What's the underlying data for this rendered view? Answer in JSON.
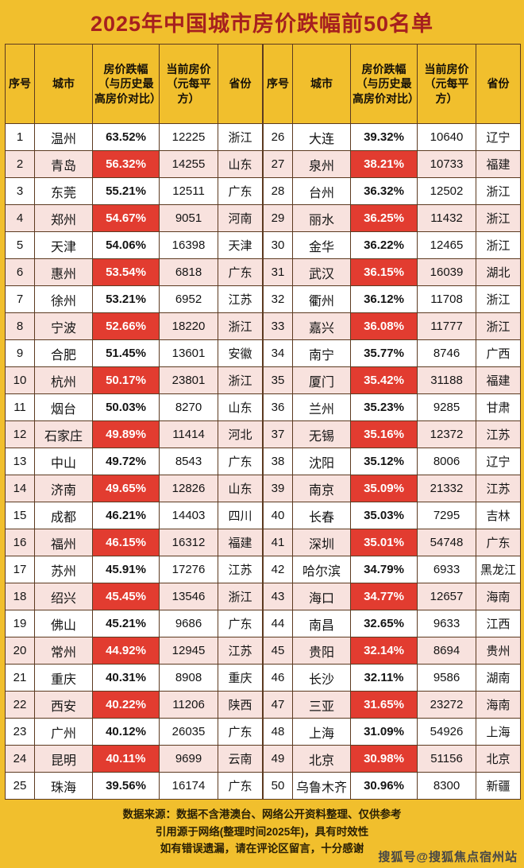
{
  "title": "2025年中国城市房价跌幅前50名单",
  "chart_data": {
    "type": "table",
    "title": "2025年中国城市房价跌幅前50名单",
    "columns": [
      "序号",
      "城市",
      "房价跌幅（与历史最高房价对比）",
      "当前房价（元每平方）",
      "省份"
    ],
    "left_rows": [
      {
        "rank": "1",
        "city": "温州",
        "drop": "63.52%",
        "price": "12225",
        "province": "浙江",
        "hl": false
      },
      {
        "rank": "2",
        "city": "青岛",
        "drop": "56.32%",
        "price": "14255",
        "province": "山东",
        "hl": true
      },
      {
        "rank": "3",
        "city": "东莞",
        "drop": "55.21%",
        "price": "12511",
        "province": "广东",
        "hl": false
      },
      {
        "rank": "4",
        "city": "郑州",
        "drop": "54.67%",
        "price": "9051",
        "province": "河南",
        "hl": true
      },
      {
        "rank": "5",
        "city": "天津",
        "drop": "54.06%",
        "price": "16398",
        "province": "天津",
        "hl": false
      },
      {
        "rank": "6",
        "city": "惠州",
        "drop": "53.54%",
        "price": "6818",
        "province": "广东",
        "hl": true
      },
      {
        "rank": "7",
        "city": "徐州",
        "drop": "53.21%",
        "price": "6952",
        "province": "江苏",
        "hl": false
      },
      {
        "rank": "8",
        "city": "宁波",
        "drop": "52.66%",
        "price": "18220",
        "province": "浙江",
        "hl": true
      },
      {
        "rank": "9",
        "city": "合肥",
        "drop": "51.45%",
        "price": "13601",
        "province": "安徽",
        "hl": false
      },
      {
        "rank": "10",
        "city": "杭州",
        "drop": "50.17%",
        "price": "23801",
        "province": "浙江",
        "hl": true
      },
      {
        "rank": "11",
        "city": "烟台",
        "drop": "50.03%",
        "price": "8270",
        "province": "山东",
        "hl": false
      },
      {
        "rank": "12",
        "city": "石家庄",
        "drop": "49.89%",
        "price": "11414",
        "province": "河北",
        "hl": true
      },
      {
        "rank": "13",
        "city": "中山",
        "drop": "49.72%",
        "price": "8543",
        "province": "广东",
        "hl": false
      },
      {
        "rank": "14",
        "city": "济南",
        "drop": "49.65%",
        "price": "12826",
        "province": "山东",
        "hl": true
      },
      {
        "rank": "15",
        "city": "成都",
        "drop": "46.21%",
        "price": "14403",
        "province": "四川",
        "hl": false
      },
      {
        "rank": "16",
        "city": "福州",
        "drop": "46.15%",
        "price": "16312",
        "province": "福建",
        "hl": true
      },
      {
        "rank": "17",
        "city": "苏州",
        "drop": "45.91%",
        "price": "17276",
        "province": "江苏",
        "hl": false
      },
      {
        "rank": "18",
        "city": "绍兴",
        "drop": "45.45%",
        "price": "13546",
        "province": "浙江",
        "hl": true
      },
      {
        "rank": "19",
        "city": "佛山",
        "drop": "45.21%",
        "price": "9686",
        "province": "广东",
        "hl": false
      },
      {
        "rank": "20",
        "city": "常州",
        "drop": "44.92%",
        "price": "12945",
        "province": "江苏",
        "hl": true
      },
      {
        "rank": "21",
        "city": "重庆",
        "drop": "40.31%",
        "price": "8908",
        "province": "重庆",
        "hl": false
      },
      {
        "rank": "22",
        "city": "西安",
        "drop": "40.22%",
        "price": "11206",
        "province": "陕西",
        "hl": true
      },
      {
        "rank": "23",
        "city": "广州",
        "drop": "40.12%",
        "price": "26035",
        "province": "广东",
        "hl": false
      },
      {
        "rank": "24",
        "city": "昆明",
        "drop": "40.11%",
        "price": "9699",
        "province": "云南",
        "hl": true
      },
      {
        "rank": "25",
        "city": "珠海",
        "drop": "39.56%",
        "price": "16174",
        "province": "广东",
        "hl": false
      }
    ],
    "right_rows": [
      {
        "rank": "26",
        "city": "大连",
        "drop": "39.32%",
        "price": "10640",
        "province": "辽宁",
        "hl": false
      },
      {
        "rank": "27",
        "city": "泉州",
        "drop": "38.21%",
        "price": "10733",
        "province": "福建",
        "hl": true
      },
      {
        "rank": "28",
        "city": "台州",
        "drop": "36.32%",
        "price": "12502",
        "province": "浙江",
        "hl": false
      },
      {
        "rank": "29",
        "city": "丽水",
        "drop": "36.25%",
        "price": "11432",
        "province": "浙江",
        "hl": true
      },
      {
        "rank": "30",
        "city": "金华",
        "drop": "36.22%",
        "price": "12465",
        "province": "浙江",
        "hl": false
      },
      {
        "rank": "31",
        "city": "武汉",
        "drop": "36.15%",
        "price": "16039",
        "province": "湖北",
        "hl": true
      },
      {
        "rank": "32",
        "city": "衢州",
        "drop": "36.12%",
        "price": "11708",
        "province": "浙江",
        "hl": false
      },
      {
        "rank": "33",
        "city": "嘉兴",
        "drop": "36.08%",
        "price": "11777",
        "province": "浙江",
        "hl": true
      },
      {
        "rank": "34",
        "city": "南宁",
        "drop": "35.77%",
        "price": "8746",
        "province": "广西",
        "hl": false
      },
      {
        "rank": "35",
        "city": "厦门",
        "drop": "35.42%",
        "price": "31188",
        "province": "福建",
        "hl": true
      },
      {
        "rank": "36",
        "city": "兰州",
        "drop": "35.23%",
        "price": "9285",
        "province": "甘肃",
        "hl": false
      },
      {
        "rank": "37",
        "city": "无锡",
        "drop": "35.16%",
        "price": "12372",
        "province": "江苏",
        "hl": true
      },
      {
        "rank": "38",
        "city": "沈阳",
        "drop": "35.12%",
        "price": "8006",
        "province": "辽宁",
        "hl": false
      },
      {
        "rank": "39",
        "city": "南京",
        "drop": "35.09%",
        "price": "21332",
        "province": "江苏",
        "hl": true
      },
      {
        "rank": "40",
        "city": "长春",
        "drop": "35.03%",
        "price": "7295",
        "province": "吉林",
        "hl": false
      },
      {
        "rank": "41",
        "city": "深圳",
        "drop": "35.01%",
        "price": "54748",
        "province": "广东",
        "hl": true
      },
      {
        "rank": "42",
        "city": "哈尔滨",
        "drop": "34.79%",
        "price": "6933",
        "province": "黑龙江",
        "hl": false
      },
      {
        "rank": "43",
        "city": "海口",
        "drop": "34.77%",
        "price": "12657",
        "province": "海南",
        "hl": true
      },
      {
        "rank": "44",
        "city": "南昌",
        "drop": "32.65%",
        "price": "9633",
        "province": "江西",
        "hl": false
      },
      {
        "rank": "45",
        "city": "贵阳",
        "drop": "32.14%",
        "price": "8694",
        "province": "贵州",
        "hl": true
      },
      {
        "rank": "46",
        "city": "长沙",
        "drop": "32.11%",
        "price": "9586",
        "province": "湖南",
        "hl": false
      },
      {
        "rank": "47",
        "city": "三亚",
        "drop": "31.65%",
        "price": "23272",
        "province": "海南",
        "hl": true
      },
      {
        "rank": "48",
        "city": "上海",
        "drop": "31.09%",
        "price": "54926",
        "province": "上海",
        "hl": false
      },
      {
        "rank": "49",
        "city": "北京",
        "drop": "30.98%",
        "price": "51156",
        "province": "北京",
        "hl": true
      },
      {
        "rank": "50",
        "city": "乌鲁木齐",
        "drop": "30.96%",
        "price": "8300",
        "province": "新疆",
        "hl": false
      }
    ]
  },
  "footer": {
    "line1": "数据来源：数据不含港澳台、网络公开资料整理、仅供参考",
    "line2": "引用源于网络(整理时间2025年)，具有时效性",
    "line3": "如有错误遗漏，请在评论区留言，十分感谢"
  },
  "watermark": "搜狐号@搜狐焦点宿州站",
  "colors": {
    "background_gold": "#F1BF2D",
    "title_red": "#A6201F",
    "highlight_red": "#E23C30",
    "row_pink": "#F8E2DE",
    "grid_line": "#5C3A20"
  }
}
